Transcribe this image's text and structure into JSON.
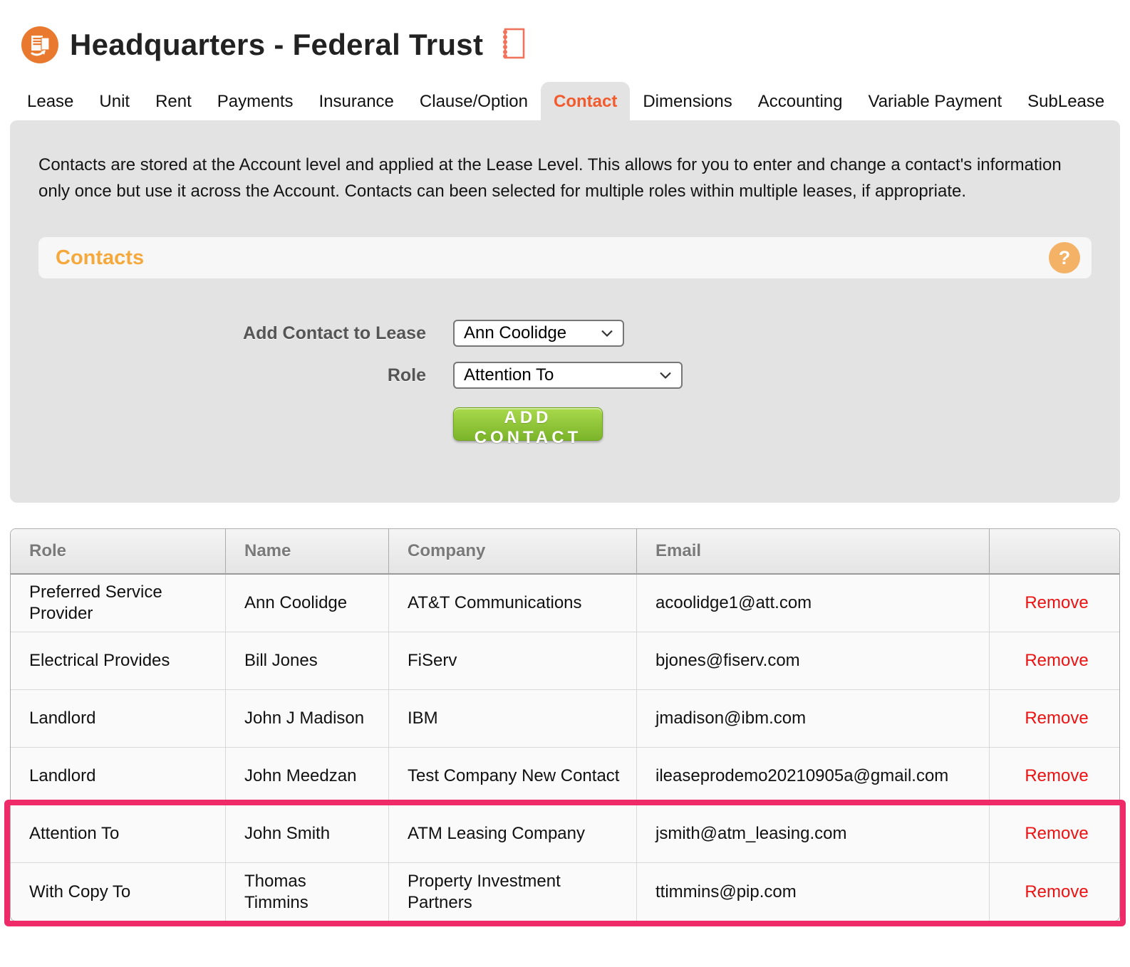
{
  "colors": {
    "accent_orange": "#F15B2D",
    "logo_orange": "#E8792E",
    "contacts_orange": "#F5A93D",
    "panel_gray": "#E3E3E3",
    "button_green": "#7CB42A",
    "remove_red": "#EE1111",
    "highlight_pink": "#EF2A68"
  },
  "header": {
    "title": "Headquarters - Federal Trust"
  },
  "tabs": {
    "items": [
      "Lease",
      "Unit",
      "Rent",
      "Payments",
      "Insurance",
      "Clause/Option",
      "Contact",
      "Dimensions",
      "Accounting",
      "Variable Payment",
      "SubLease"
    ],
    "active": "Contact"
  },
  "intro": "Contacts are stored at the Account level and applied at the Lease Level. This allows for you to enter and change a contact's information only once but use it across the Account. Contacts can been selected for multiple roles within multiple leases, if appropriate.",
  "contacts_panel": {
    "title": "Contacts",
    "help_label": "?"
  },
  "form": {
    "contact_label": "Add Contact to Lease",
    "contact_value": "Ann Coolidge",
    "role_label": "Role",
    "role_value": "Attention To",
    "add_button_label": "ADD CONTACT"
  },
  "table": {
    "headers": {
      "role": "Role",
      "name": "Name",
      "company": "Company",
      "email": "Email",
      "action": ""
    },
    "rows": [
      {
        "role": "Preferred Service Provider",
        "name": "Ann Coolidge",
        "company": "AT&T Communications",
        "email": "acoolidge1@att.com",
        "action": "Remove",
        "highlighted": false
      },
      {
        "role": "Electrical Provides",
        "name": "Bill Jones",
        "company": "FiServ",
        "email": "bjones@fiserv.com",
        "action": "Remove",
        "highlighted": false
      },
      {
        "role": "Landlord",
        "name": "John J Madison",
        "company": "IBM",
        "email": "jmadison@ibm.com",
        "action": "Remove",
        "highlighted": false
      },
      {
        "role": "Landlord",
        "name": "John Meedzan",
        "company": "Test Company New Contact",
        "email": "ileaseprodemo20210905a@gmail.com",
        "action": "Remove",
        "highlighted": false
      },
      {
        "role": "Attention To",
        "name": "John Smith",
        "company": "ATM Leasing Company",
        "email": "jsmith@atm_leasing.com",
        "action": "Remove",
        "highlighted": true
      },
      {
        "role": "With Copy To",
        "name": "Thomas Timmins",
        "company": "Property Investment Partners",
        "email": "ttimmins@pip.com",
        "action": "Remove",
        "highlighted": true
      }
    ]
  }
}
